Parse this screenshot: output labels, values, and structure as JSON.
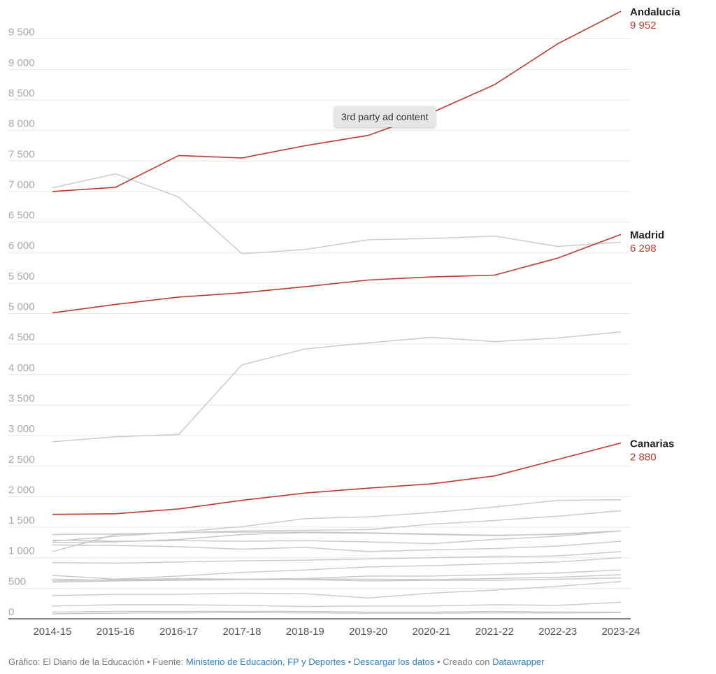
{
  "chart_data": {
    "type": "line",
    "x": [
      "2014-15",
      "2015-16",
      "2016-17",
      "2017-18",
      "2018-19",
      "2019-20",
      "2020-21",
      "2021-22",
      "2022-23",
      "2023-24"
    ],
    "ylim": [
      0,
      9800
    ],
    "yticks": [
      0,
      500,
      1000,
      1500,
      2000,
      2500,
      3000,
      3500,
      4000,
      4500,
      5000,
      5500,
      6000,
      6500,
      7000,
      7500,
      8000,
      8500,
      9000,
      9500
    ],
    "ytick_labels": [
      "0",
      "500",
      "1 000",
      "1 500",
      "2 000",
      "2 500",
      "3 000",
      "3 500",
      "4 000",
      "4 500",
      "5 000",
      "5 500",
      "6 000",
      "6 500",
      "7 000",
      "7 500",
      "8 000",
      "8 500",
      "9 000",
      "9 500"
    ],
    "grid": true,
    "highlight_color": "#c0392b",
    "muted_color": "#c8c8c8",
    "highlighted": [
      {
        "name": "Andalucía",
        "value_label": "9 952",
        "values": [
          7000,
          7070,
          7590,
          7550,
          7750,
          7920,
          8290,
          8750,
          9420,
          9952
        ]
      },
      {
        "name": "Madrid",
        "value_label": "6 298",
        "values": [
          5010,
          5150,
          5270,
          5340,
          5440,
          5550,
          5600,
          5630,
          5910,
          6298
        ]
      },
      {
        "name": "Canarias",
        "value_label": "2 880",
        "values": [
          1710,
          1720,
          1800,
          1940,
          2060,
          2140,
          2210,
          2340,
          2610,
          2880
        ]
      }
    ],
    "others": [
      {
        "values": [
          7060,
          7290,
          6910,
          5980,
          6050,
          6210,
          6230,
          6270,
          6100,
          6170
        ]
      },
      {
        "values": [
          2900,
          2980,
          3020,
          4160,
          4420,
          4520,
          4610,
          4540,
          4600,
          4700
        ]
      },
      {
        "values": [
          1270,
          1350,
          1420,
          1510,
          1640,
          1670,
          1740,
          1830,
          1940,
          1950
        ]
      },
      {
        "values": [
          1100,
          1380,
          1410,
          1440,
          1450,
          1460,
          1550,
          1610,
          1680,
          1770
        ]
      },
      {
        "values": [
          1380,
          1390,
          1410,
          1420,
          1420,
          1410,
          1390,
          1370,
          1380,
          1440
        ]
      },
      {
        "values": [
          1250,
          1260,
          1300,
          1380,
          1410,
          1400,
          1380,
          1360,
          1390,
          1440
        ]
      },
      {
        "values": [
          1210,
          1200,
          1180,
          1140,
          1170,
          1100,
          1130,
          1150,
          1190,
          1270
        ]
      },
      {
        "values": [
          1290,
          1270,
          1280,
          1270,
          1280,
          1260,
          1230,
          1300,
          1350,
          1440
        ]
      },
      {
        "values": [
          920,
          910,
          930,
          950,
          960,
          980,
          1000,
          1020,
          1030,
          1100
        ]
      },
      {
        "values": [
          710,
          650,
          700,
          760,
          800,
          850,
          870,
          900,
          930,
          1000
        ]
      },
      {
        "values": [
          650,
          630,
          640,
          650,
          660,
          700,
          700,
          720,
          750,
          800
        ]
      },
      {
        "values": [
          620,
          640,
          660,
          650,
          650,
          650,
          640,
          660,
          680,
          720
        ]
      },
      {
        "values": [
          600,
          620,
          630,
          640,
          640,
          620,
          630,
          630,
          650,
          670
        ]
      },
      {
        "values": [
          380,
          400,
          400,
          420,
          410,
          340,
          420,
          470,
          530,
          610
        ]
      },
      {
        "values": [
          210,
          230,
          230,
          220,
          200,
          210,
          210,
          230,
          220,
          270
        ]
      },
      {
        "values": [
          110,
          120,
          120,
          120,
          120,
          110,
          110,
          120,
          110,
          110
        ]
      },
      {
        "values": [
          80,
          90,
          95,
          100,
          95,
          90,
          90,
          95,
          95,
          100
        ]
      }
    ]
  },
  "tooltip": "3rd party ad content",
  "footer": {
    "grafico": "Gráfico: El Diario de la Educación",
    "fuente_label": "• Fuente:",
    "fuente_link": "Ministerio de Educación, FP y Deportes",
    "sep1": "•",
    "descargar": "Descargar los datos",
    "sep2": "•",
    "creado": "Creado con",
    "datawrapper": "Datawrapper"
  }
}
